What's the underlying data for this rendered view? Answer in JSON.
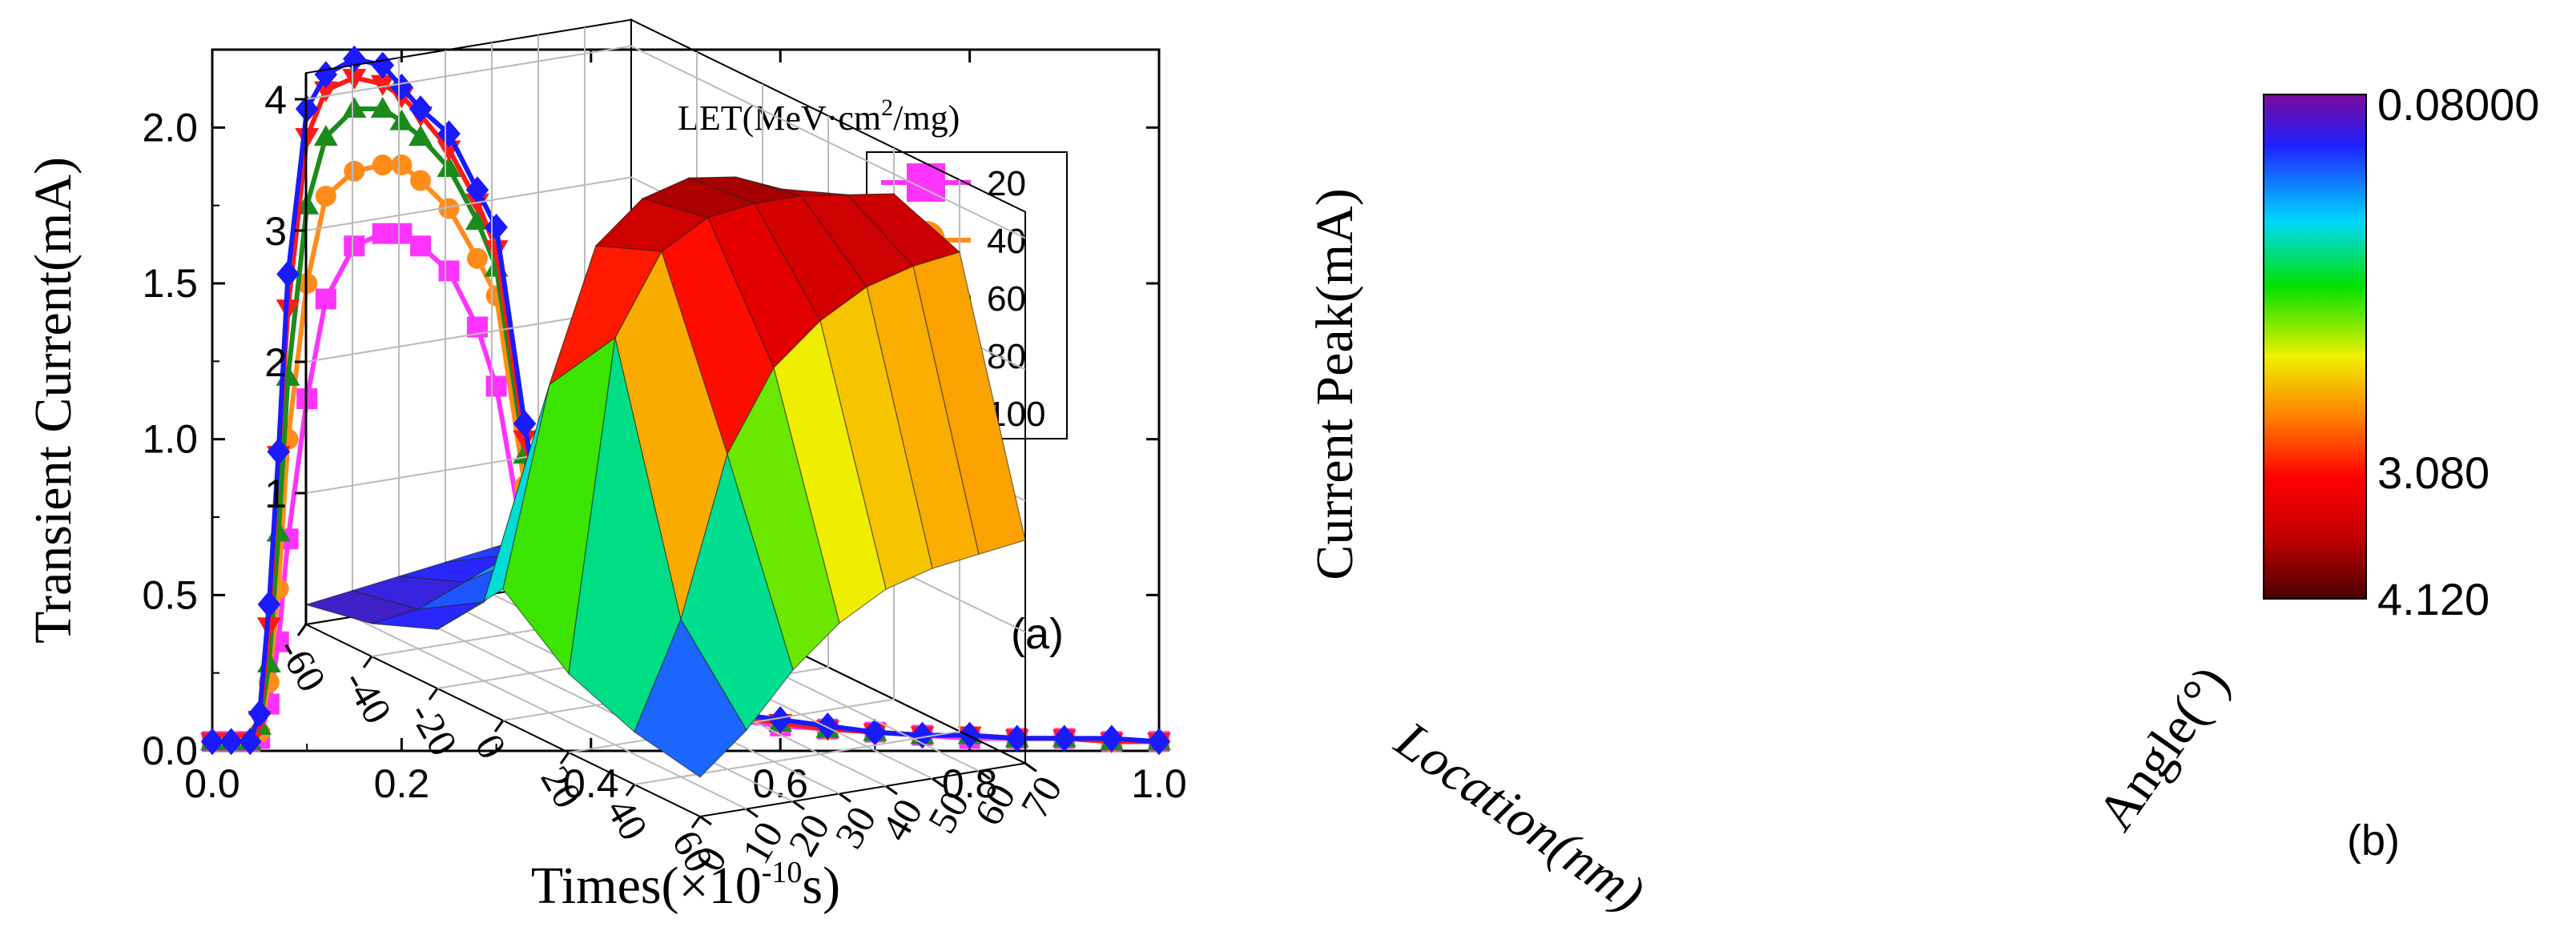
{
  "chart_data": [
    {
      "panel": "(a)",
      "type": "line",
      "title": "",
      "xlabel": "Times(×10",
      "xlabel_sup": "-10",
      "xlabel_tail": "s)",
      "ylabel": "Transient Current(mA)",
      "xlim": [
        0.0,
        1.0
      ],
      "ylim": [
        0.0,
        2.25
      ],
      "xticks": [
        "0.0",
        "0.2",
        "0.4",
        "0.6",
        "0.8",
        "1.0"
      ],
      "yticks": [
        "0.0",
        "0.5",
        "1.0",
        "1.5",
        "2.0"
      ],
      "legend_title": "LET(MeV·cm",
      "legend_title_sup": "2",
      "legend_title_tail": "/mg)",
      "legend_position": "top-right",
      "x": [
        0.0,
        0.02,
        0.04,
        0.05,
        0.06,
        0.07,
        0.08,
        0.1,
        0.12,
        0.15,
        0.18,
        0.2,
        0.22,
        0.25,
        0.28,
        0.3,
        0.33,
        0.35,
        0.38,
        0.42,
        0.46,
        0.5,
        0.55,
        0.6,
        0.65,
        0.7,
        0.75,
        0.8,
        0.85,
        0.9,
        0.95,
        1.0
      ],
      "series": [
        {
          "name": "20",
          "color": "#ff33ff",
          "marker": "square",
          "values": [
            0.03,
            0.03,
            0.03,
            0.04,
            0.15,
            0.35,
            0.68,
            1.13,
            1.45,
            1.62,
            1.66,
            1.66,
            1.62,
            1.54,
            1.36,
            1.17,
            0.65,
            0.44,
            0.33,
            0.22,
            0.16,
            0.12,
            0.1,
            0.08,
            0.07,
            0.06,
            0.05,
            0.04,
            0.04,
            0.04,
            0.03,
            0.03
          ]
        },
        {
          "name": "40",
          "color": "#ff8c1a",
          "marker": "circle",
          "values": [
            0.03,
            0.03,
            0.03,
            0.06,
            0.22,
            0.52,
            1.0,
            1.5,
            1.78,
            1.86,
            1.88,
            1.88,
            1.83,
            1.74,
            1.58,
            1.46,
            0.85,
            0.54,
            0.38,
            0.25,
            0.18,
            0.14,
            0.11,
            0.09,
            0.07,
            0.06,
            0.05,
            0.05,
            0.04,
            0.04,
            0.03,
            0.03
          ]
        },
        {
          "name": "60",
          "color": "#1a8c1a",
          "marker": "triangle-up",
          "values": [
            0.03,
            0.03,
            0.03,
            0.08,
            0.28,
            0.7,
            1.2,
            1.75,
            1.97,
            2.06,
            2.06,
            2.02,
            1.97,
            1.87,
            1.7,
            1.55,
            0.95,
            0.6,
            0.4,
            0.26,
            0.19,
            0.14,
            0.11,
            0.09,
            0.07,
            0.06,
            0.05,
            0.05,
            0.04,
            0.04,
            0.03,
            0.03
          ]
        },
        {
          "name": "80",
          "color": "#ff1a1a",
          "marker": "triangle-down",
          "values": [
            0.03,
            0.03,
            0.03,
            0.1,
            0.4,
            0.95,
            1.42,
            1.97,
            2.12,
            2.16,
            2.14,
            2.1,
            2.04,
            1.93,
            1.76,
            1.61,
            1.0,
            0.62,
            0.42,
            0.27,
            0.19,
            0.15,
            0.11,
            0.09,
            0.07,
            0.06,
            0.05,
            0.05,
            0.04,
            0.04,
            0.03,
            0.03
          ]
        },
        {
          "name": "100",
          "color": "#1a1aff",
          "marker": "diamond",
          "values": [
            0.03,
            0.03,
            0.03,
            0.12,
            0.47,
            0.96,
            1.53,
            2.06,
            2.17,
            2.22,
            2.2,
            2.13,
            2.06,
            1.98,
            1.8,
            1.68,
            1.05,
            0.67,
            0.47,
            0.29,
            0.2,
            0.16,
            0.12,
            0.1,
            0.08,
            0.06,
            0.05,
            0.05,
            0.04,
            0.04,
            0.04,
            0.03
          ]
        }
      ]
    },
    {
      "panel": "(b)",
      "type": "surface3d",
      "title": "",
      "xlabel": "Location(nm)",
      "ylabel": "Angle(°)",
      "zlabel": "Current Peak(mA)",
      "xticks": [
        "-60",
        "-40",
        "-20",
        "0",
        "20",
        "40",
        "60"
      ],
      "yticks": [
        "0",
        "10",
        "20",
        "30",
        "40",
        "50",
        "60",
        "70"
      ],
      "zticks": [
        "1",
        "2",
        "3",
        "4"
      ],
      "zlim": [
        0,
        4.2
      ],
      "location": [
        -60,
        -40,
        -20,
        0,
        20,
        40,
        60
      ],
      "angle": [
        0,
        10,
        20,
        30,
        40,
        50,
        60,
        70
      ],
      "values": [
        [
          0.15,
          0.25,
          0.45,
          1.0,
          0.6,
          0.4,
          0.3
        ],
        [
          0.2,
          0.3,
          0.6,
          2.5,
          3.1,
          1.2,
          0.6
        ],
        [
          0.25,
          0.45,
          0.9,
          3.5,
          3.7,
          2.4,
          1.0
        ],
        [
          0.3,
          0.6,
          1.3,
          3.8,
          3.9,
          3.0,
          1.3
        ],
        [
          0.35,
          0.7,
          1.6,
          3.9,
          3.95,
          3.3,
          1.5
        ],
        [
          0.4,
          0.8,
          1.8,
          3.85,
          3.95,
          3.5,
          1.6
        ],
        [
          0.45,
          0.9,
          2.0,
          3.7,
          3.9,
          3.6,
          1.65
        ],
        [
          0.5,
          1.0,
          2.1,
          3.3,
          3.85,
          3.65,
          1.7
        ]
      ],
      "colorbar": {
        "labels": [
          "0.08000",
          "3.080",
          "4.120"
        ],
        "stops": [
          "#800080",
          "#0000ff",
          "#00ffff",
          "#00ff00",
          "#ffff00",
          "#ff8000",
          "#ff0000",
          "#a00000",
          "#500000"
        ]
      }
    }
  ]
}
